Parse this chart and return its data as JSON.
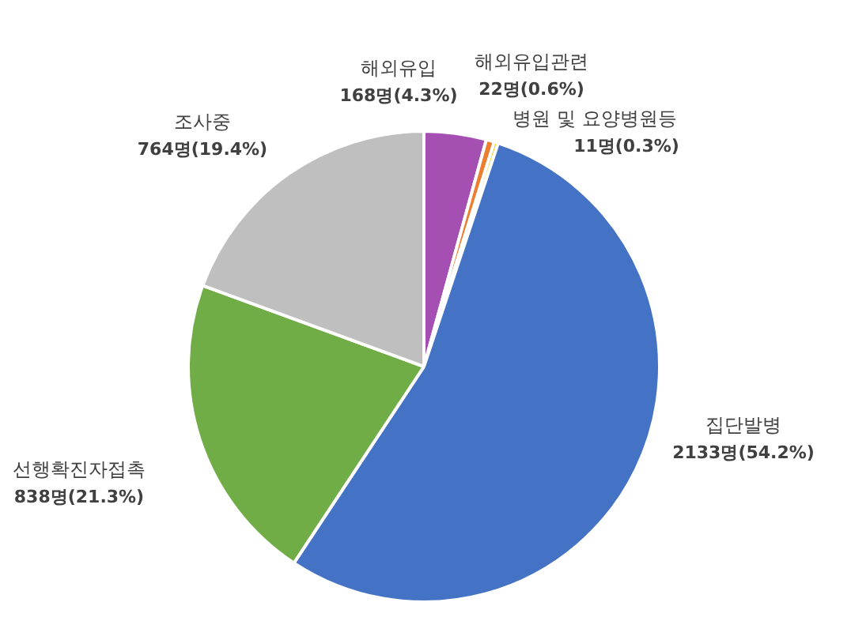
{
  "chart_data": {
    "type": "pie",
    "categories": [
      "해외유입",
      "해외유입관련",
      "병원 및 요양병원등",
      "집단발병",
      "선행확진자접촉",
      "조사중"
    ],
    "values": [
      168,
      22,
      11,
      2133,
      838,
      764
    ],
    "value_labels": [
      "168명(4.3%)",
      "22명(0.6%)",
      "11명(0.3%)",
      "2133명(54.2%)",
      "838명(21.3%)",
      "764명(19.4%)"
    ],
    "colors": [
      "#a64fb3",
      "#ed7d31",
      "#ffc000",
      "#4472c4",
      "#70ad47",
      "#bfbfbf"
    ],
    "legend": false
  }
}
